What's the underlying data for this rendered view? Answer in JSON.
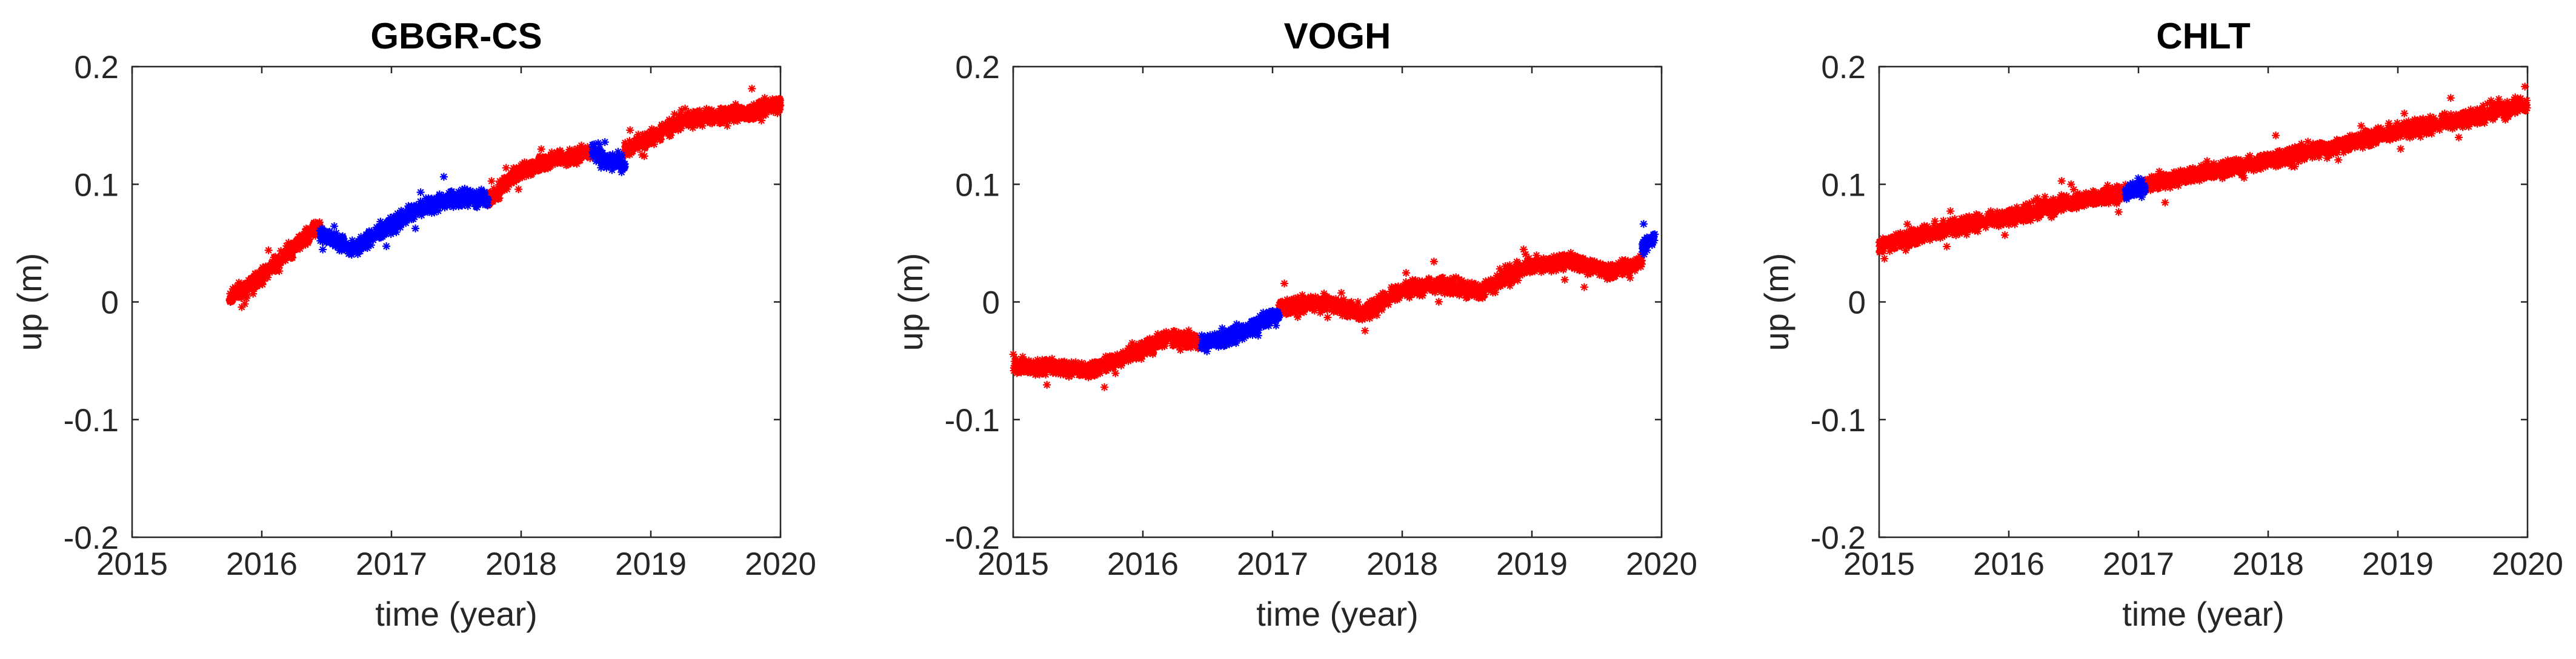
{
  "chart_data": [
    {
      "type": "scatter",
      "title": "GBGR-CS",
      "xlabel": "time (year)",
      "ylabel": "up (m)",
      "xlim": [
        2015,
        2020
      ],
      "ylim": [
        -0.2,
        0.2
      ],
      "xticks": [
        "2015",
        "2016",
        "2017",
        "2018",
        "2019",
        "2020"
      ],
      "yticks": [
        "-0.2",
        "-0.1",
        "0",
        "0.1",
        "0.2"
      ],
      "marker": "*",
      "series": [
        {
          "name": "red",
          "color": "#ff0000",
          "segments": [
            {
              "x": [
                2015.75,
                2016.0,
                2016.25,
                2016.45
              ],
              "y": [
                0.003,
                0.022,
                0.047,
                0.065
              ]
            },
            {
              "x": [
                2017.75,
                2017.95,
                2018.15,
                2018.4,
                2018.55
              ],
              "y": [
                0.085,
                0.108,
                0.118,
                0.124,
                0.128
              ]
            },
            {
              "x": [
                2018.8,
                2019.0,
                2019.25,
                2019.5,
                2019.75,
                2020.0
              ],
              "y": [
                0.128,
                0.14,
                0.155,
                0.158,
                0.16,
                0.17
              ]
            }
          ]
        },
        {
          "name": "blue",
          "color": "#0000ff",
          "segments": [
            {
              "x": [
                2016.45,
                2016.7,
                2016.95,
                2017.2,
                2017.45,
                2017.75
              ],
              "y": [
                0.058,
                0.045,
                0.062,
                0.078,
                0.088,
                0.087
              ]
            },
            {
              "x": [
                2018.55,
                2018.65,
                2018.8
              ],
              "y": [
                0.128,
                0.12,
                0.118
              ]
            }
          ]
        }
      ]
    },
    {
      "type": "scatter",
      "title": "VOGH",
      "xlabel": "time (year)",
      "ylabel": "up (m)",
      "xlim": [
        2015,
        2020
      ],
      "ylim": [
        -0.2,
        0.2
      ],
      "xticks": [
        "2015",
        "2016",
        "2017",
        "2018",
        "2019",
        "2020"
      ],
      "yticks": [
        "-0.2",
        "-0.1",
        "0",
        "0.1",
        "0.2"
      ],
      "marker": "*",
      "series": [
        {
          "name": "red",
          "color": "#ff0000",
          "segments": [
            {
              "x": [
                2015.0,
                2015.3,
                2015.6,
                2015.9,
                2016.2,
                2016.45
              ],
              "y": [
                -0.055,
                -0.055,
                -0.058,
                -0.045,
                -0.03,
                -0.035
              ]
            },
            {
              "x": [
                2017.05,
                2017.4,
                2017.7,
                2018.0,
                2018.3,
                2018.6,
                2018.95,
                2019.3,
                2019.6,
                2019.85
              ],
              "y": [
                -0.005,
                0.0,
                -0.01,
                0.01,
                0.015,
                0.008,
                0.03,
                0.035,
                0.025,
                0.035
              ]
            }
          ]
        },
        {
          "name": "blue",
          "color": "#0000ff",
          "segments": [
            {
              "x": [
                2016.45,
                2016.6,
                2016.8,
                2017.05
              ],
              "y": [
                -0.035,
                -0.032,
                -0.025,
                -0.01
              ]
            },
            {
              "x": [
                2019.85,
                2019.95
              ],
              "y": [
                0.045,
                0.055
              ]
            }
          ]
        }
      ]
    },
    {
      "type": "scatter",
      "title": "CHLT",
      "xlabel": "time (year)",
      "ylabel": "up (m)",
      "xlim": [
        2015,
        2020
      ],
      "ylim": [
        -0.2,
        0.2
      ],
      "xticks": [
        "2015",
        "2016",
        "2017",
        "2018",
        "2019",
        "2020"
      ],
      "yticks": [
        "-0.2",
        "-0.1",
        "0",
        "0.1",
        "0.2"
      ],
      "marker": "*",
      "series": [
        {
          "name": "red",
          "color": "#ff0000",
          "segments": [
            {
              "x": [
                2015.0,
                2015.5,
                2016.0,
                2016.5,
                2016.9
              ],
              "y": [
                0.048,
                0.062,
                0.072,
                0.085,
                0.093
              ]
            },
            {
              "x": [
                2017.05,
                2017.5,
                2018.0,
                2018.5,
                2019.0,
                2019.5,
                2020.0
              ],
              "y": [
                0.1,
                0.11,
                0.12,
                0.132,
                0.145,
                0.155,
                0.168
              ]
            }
          ]
        },
        {
          "name": "blue",
          "color": "#0000ff",
          "segments": [
            {
              "x": [
                2016.9,
                2017.05
              ],
              "y": [
                0.093,
                0.098
              ]
            }
          ]
        }
      ]
    }
  ]
}
